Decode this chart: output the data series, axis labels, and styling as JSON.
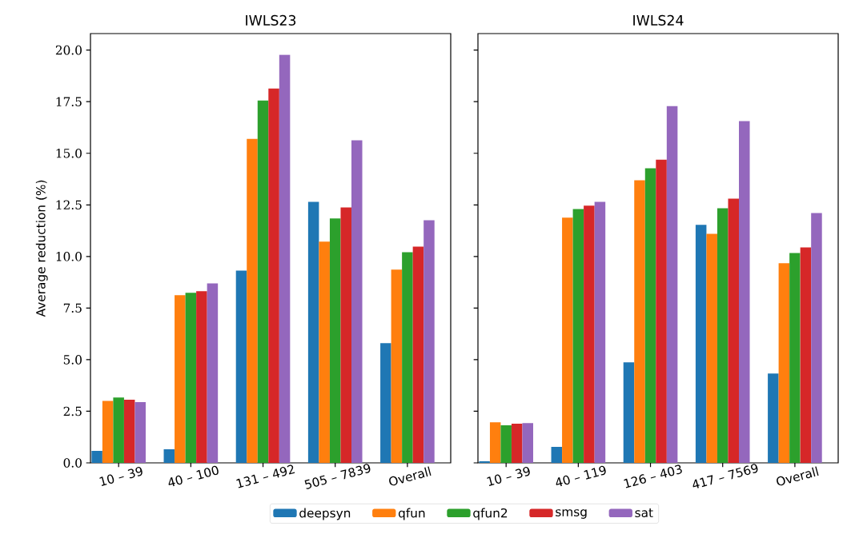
{
  "chart_data": [
    {
      "type": "bar",
      "title": "IWLS23",
      "ylabel": "Average reduction (%)",
      "categories": [
        "10 – 39",
        "40 – 100",
        "131 – 492",
        "505 – 7839",
        "Overall"
      ],
      "ylim": [
        0,
        20.8
      ],
      "yticks": [
        {
          "value": 0,
          "label": "0.0"
        },
        {
          "value": 2.5,
          "label": "2.5"
        },
        {
          "value": 5,
          "label": "5.0"
        },
        {
          "value": 7.5,
          "label": "7.5"
        },
        {
          "value": 10,
          "label": "10.0"
        },
        {
          "value": 12.5,
          "label": "12.5"
        },
        {
          "value": 15,
          "label": "15.0"
        },
        {
          "value": 17.5,
          "label": "17.5"
        },
        {
          "value": 20,
          "label": "20.0"
        }
      ],
      "legend": "bottom",
      "series": [
        {
          "name": "deepsyn",
          "color": "#1f77b4",
          "values": [
            0.58,
            0.66,
            9.32,
            12.65,
            5.8
          ]
        },
        {
          "name": "qfun",
          "color": "#ff7f0e",
          "values": [
            3.0,
            8.12,
            15.7,
            10.72,
            9.36
          ]
        },
        {
          "name": "qfun2",
          "color": "#2ca02c",
          "values": [
            3.17,
            8.24,
            17.56,
            11.84,
            10.21
          ]
        },
        {
          "name": "smsg",
          "color": "#d62728",
          "values": [
            3.06,
            8.32,
            18.14,
            12.38,
            10.48
          ]
        },
        {
          "name": "sat",
          "color": "#9467bd",
          "values": [
            2.94,
            8.7,
            19.77,
            15.63,
            11.76
          ]
        }
      ]
    },
    {
      "type": "bar",
      "title": "IWLS24",
      "categories": [
        "10 – 39",
        "40 – 119",
        "126 – 403",
        "417 – 7569",
        "Overall"
      ],
      "ylim": [
        0,
        20.8
      ],
      "yticks": [
        {
          "value": 0,
          "label": null
        },
        {
          "value": 2.5,
          "label": null
        },
        {
          "value": 5,
          "label": null
        },
        {
          "value": 7.5,
          "label": null
        },
        {
          "value": 10,
          "label": null
        },
        {
          "value": 12.5,
          "label": null
        },
        {
          "value": 15,
          "label": null
        },
        {
          "value": 17.5,
          "label": null
        },
        {
          "value": 20,
          "label": null
        }
      ],
      "tick_labels": "x",
      "series": [
        {
          "color": "#1f77b4",
          "values": [
            0.08,
            0.77,
            4.87,
            11.53,
            4.33
          ]
        },
        {
          "color": "#ff7f0e",
          "values": [
            1.97,
            11.88,
            13.69,
            11.1,
            9.67
          ]
        },
        {
          "color": "#2ca02c",
          "values": [
            1.82,
            12.3,
            14.27,
            12.34,
            10.17
          ]
        },
        {
          "color": "#d62728",
          "values": [
            1.9,
            12.46,
            14.7,
            12.8,
            10.44
          ]
        },
        {
          "color": "#9467bd",
          "values": [
            1.93,
            12.65,
            17.29,
            16.56,
            12.1
          ]
        }
      ]
    }
  ]
}
